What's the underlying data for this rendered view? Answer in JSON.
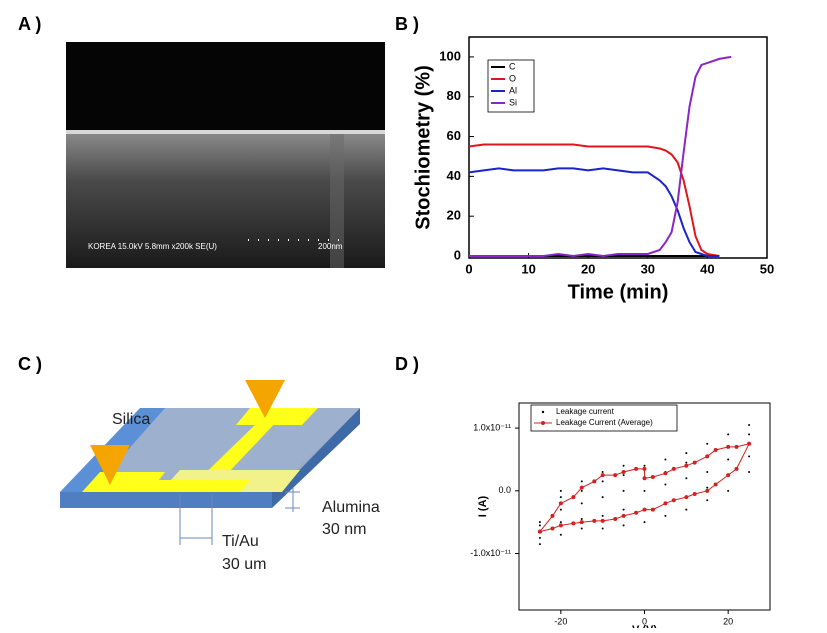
{
  "panel_labels": [
    "A )",
    "B )",
    "C )",
    "D )"
  ],
  "sem_image": {
    "caption": "KOREA 15.0kV 5.8mm x200k SE(U)",
    "scale": "200nm"
  },
  "diagram": {
    "silica": "Silica",
    "alumina": "Alumina",
    "alumina_thickness": "30 nm",
    "electrode": "Ti/Au",
    "electrode_width": "30 um"
  },
  "chart_data": [
    {
      "type": "line",
      "xlabel": "Time (min)",
      "ylabel": "Stochiometry (%)",
      "x": [
        0,
        2.5,
        5,
        7.5,
        10,
        12.5,
        15,
        17.5,
        20,
        22.5,
        25,
        27.5,
        30,
        32,
        33,
        34,
        35,
        36,
        37,
        38,
        39,
        40,
        42,
        44
      ],
      "xlim": [
        0,
        50
      ],
      "ylim": [
        -1,
        110
      ],
      "xticks": [
        0,
        10,
        20,
        30,
        40,
        50
      ],
      "yticks": [
        0,
        20,
        40,
        60,
        80,
        100
      ],
      "series": [
        {
          "name": "C",
          "color": "#000000",
          "values": [
            0,
            0,
            0,
            0,
            0,
            0,
            0,
            0,
            0,
            0,
            0,
            0,
            0,
            0,
            0,
            0,
            0,
            0,
            0,
            0,
            0,
            0,
            0,
            null
          ]
        },
        {
          "name": "O",
          "color": "#e0161c",
          "values": [
            55,
            56,
            56,
            56,
            56,
            56,
            56,
            56,
            55,
            55,
            55,
            55,
            55,
            54,
            53,
            51,
            47,
            38,
            25,
            10,
            3,
            1,
            0,
            null
          ]
        },
        {
          "name": "Al",
          "color": "#1a24c8",
          "values": [
            42,
            43,
            44,
            43,
            43,
            43,
            44,
            44,
            43,
            44,
            43,
            42,
            42,
            38,
            35,
            30,
            23,
            14,
            7,
            2,
            1,
            0,
            0,
            null
          ]
        },
        {
          "name": "Si",
          "color": "#8a26c8",
          "values": [
            0,
            0,
            0,
            0,
            0,
            0,
            1,
            0,
            1,
            0,
            1,
            1,
            1,
            3,
            7,
            12,
            27,
            52,
            75,
            90,
            96,
            97,
            99,
            100
          ]
        }
      ]
    },
    {
      "type": "scatter",
      "xlabel": "V (V)",
      "ylabel": "I (A)",
      "xlim": [
        -30,
        30
      ],
      "ylim": [
        -1.9e-11,
        1.4e-11
      ],
      "xticks": [
        -20,
        0,
        20
      ],
      "yticks": [
        {
          "value": 1e-11,
          "label": "1.0x10⁻¹¹"
        },
        {
          "value": 0,
          "label": "0.0"
        },
        {
          "value": -1e-11,
          "label": "-1.0x10⁻¹¹"
        }
      ],
      "series": [
        {
          "name": "Leakage current",
          "color": "#000000",
          "x": [
            -25,
            -25,
            -25,
            -25,
            -25,
            -20,
            -20,
            -20,
            -20,
            -20,
            -15,
            -15,
            -15,
            -15,
            -15,
            -10,
            -10,
            -10,
            -10,
            -10,
            -5,
            -5,
            -5,
            -5,
            -5,
            0,
            0,
            0,
            0,
            0,
            5,
            5,
            5,
            5,
            5,
            10,
            10,
            10,
            10,
            10,
            15,
            15,
            15,
            15,
            15,
            20,
            20,
            20,
            20,
            20,
            25,
            25,
            25,
            25,
            25
          ],
          "values": [
            -8.5e-12,
            -7.5e-12,
            -6.5e-12,
            -5.5e-12,
            -5e-12,
            -7e-12,
            -5e-12,
            -3e-12,
            -1e-12,
            0,
            -6e-12,
            -4.5e-12,
            -2e-12,
            0,
            1.5e-12,
            -6e-12,
            -4e-12,
            -1e-12,
            1.5e-12,
            3e-12,
            -5.5e-12,
            -3e-12,
            0,
            2.5e-12,
            4e-12,
            -5e-12,
            -3e-12,
            0,
            2e-12,
            4e-12,
            -4e-12,
            -2e-12,
            1e-12,
            3e-12,
            5e-12,
            -3e-12,
            -1e-12,
            2e-12,
            4.5e-12,
            6e-12,
            -1.5e-12,
            5e-13,
            3e-12,
            5.5e-12,
            7.5e-12,
            0,
            2.5e-12,
            5e-12,
            7e-12,
            9e-12,
            3e-12,
            5.5e-12,
            7.5e-12,
            9e-12,
            1.05e-11
          ]
        },
        {
          "name": "Leakage Current (Average)",
          "color": "#d42020",
          "x": [
            -25,
            -22,
            -20,
            -17,
            -15,
            -12,
            -10,
            -7,
            -5,
            -2,
            0,
            0,
            2,
            5,
            7,
            10,
            12,
            15,
            17,
            20,
            22,
            25,
            22,
            20,
            17,
            15,
            12,
            10,
            7,
            5,
            2,
            0,
            -2,
            -5,
            -7,
            -10,
            -12,
            -15,
            -17,
            -20,
            -22,
            -25
          ],
          "values": [
            -6.5e-12,
            -4e-12,
            -2e-12,
            -1e-12,
            5e-13,
            1.5e-12,
            2.5e-12,
            2.5e-12,
            3e-12,
            3.5e-12,
            3.5e-12,
            2e-12,
            2.2e-12,
            2.8e-12,
            3.5e-12,
            4e-12,
            4.5e-12,
            5.5e-12,
            6.5e-12,
            7e-12,
            7e-12,
            7.5e-12,
            3.5e-12,
            2.5e-12,
            1e-12,
            0,
            -5e-13,
            -1e-12,
            -1.5e-12,
            -2e-12,
            -3e-12,
            -3e-12,
            -3.5e-12,
            -4e-12,
            -4.5e-12,
            -4.8e-12,
            -4.8e-12,
            -5e-12,
            -5.2e-12,
            -5.5e-12,
            -6e-12,
            -6.5e-12
          ]
        }
      ]
    }
  ]
}
